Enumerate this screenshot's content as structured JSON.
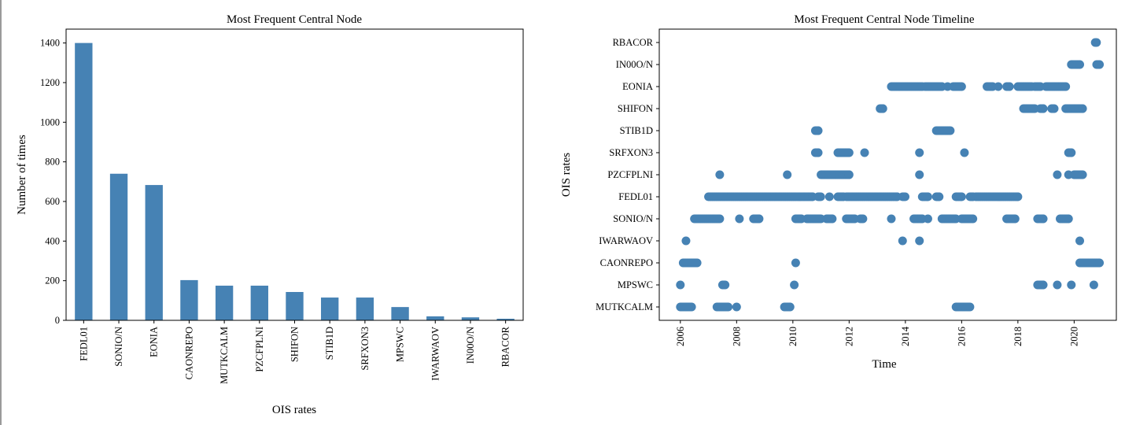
{
  "colors": {
    "bar": "#4682b4",
    "point": "#4682b4"
  },
  "chart_data": [
    {
      "type": "bar",
      "title": "Most Frequent Central Node",
      "xlabel": "OIS rates",
      "ylabel": "Number of times",
      "categories": [
        "FEDL01",
        "SONIO/N",
        "EONIA",
        "CAONREPO",
        "MUTKCALM",
        "PZCFPLNI",
        "SHIFON",
        "STIB1D",
        "SRFXON3",
        "MPSWC",
        "IWARWAOV",
        "IN00O/N",
        "RBACOR"
      ],
      "values": [
        1400,
        740,
        683,
        203,
        175,
        175,
        143,
        115,
        115,
        67,
        20,
        15,
        8
      ],
      "ylim": [
        0,
        1470
      ],
      "yticks": [
        0,
        200,
        400,
        600,
        800,
        1000,
        1200,
        1400
      ]
    },
    {
      "type": "scatter",
      "title": "Most Frequent Central Node Timeline",
      "xlabel": "Time",
      "ylabel": "OIS rates",
      "categories": [
        "MUTKCALM",
        "MPSWC",
        "CAONREPO",
        "IWARWAOV",
        "SONIO/N",
        "FEDL01",
        "PZCFPLNI",
        "SRFXON3",
        "STIB1D",
        "SHIFON",
        "EONIA",
        "IN00O/N",
        "RBACOR"
      ],
      "xlim": [
        2005.25,
        2021.5
      ],
      "xticks": [
        "2006",
        "2008",
        "2010",
        "2012",
        "2014",
        "2016",
        "2018",
        "2020"
      ],
      "runs": {
        "MUTKCALM": [
          [
            2006.0,
            2006.4
          ],
          [
            2007.3,
            2007.7
          ],
          [
            2008.0,
            2008.0
          ],
          [
            2009.7,
            2009.9
          ],
          [
            2015.8,
            2016.3
          ]
        ],
        "MPSWC": [
          [
            2006.0,
            2006.0
          ],
          [
            2007.5,
            2007.6
          ],
          [
            2010.05,
            2010.05
          ],
          [
            2018.7,
            2018.9
          ],
          [
            2019.4,
            2019.4
          ],
          [
            2019.9,
            2019.9
          ],
          [
            2020.7,
            2020.7
          ]
        ],
        "CAONREPO": [
          [
            2006.1,
            2006.6
          ],
          [
            2010.1,
            2010.1
          ],
          [
            2020.2,
            2020.9
          ]
        ],
        "IWARWAOV": [
          [
            2006.2,
            2006.2
          ],
          [
            2013.9,
            2013.9
          ],
          [
            2014.5,
            2014.5
          ],
          [
            2020.2,
            2020.2
          ]
        ],
        "SONIO/N": [
          [
            2006.5,
            2007.4
          ],
          [
            2008.1,
            2008.1
          ],
          [
            2008.6,
            2008.8
          ],
          [
            2010.1,
            2010.3
          ],
          [
            2010.5,
            2011.0
          ],
          [
            2011.2,
            2011.4
          ],
          [
            2011.9,
            2012.2
          ],
          [
            2012.4,
            2012.5
          ],
          [
            2013.5,
            2013.5
          ],
          [
            2014.3,
            2014.6
          ],
          [
            2014.8,
            2014.8
          ],
          [
            2015.3,
            2015.8
          ],
          [
            2016.0,
            2016.4
          ],
          [
            2017.6,
            2017.9
          ],
          [
            2018.7,
            2018.9
          ],
          [
            2019.5,
            2019.8
          ]
        ],
        "FEDL01": [
          [
            2007.0,
            2010.7
          ],
          [
            2010.9,
            2011.0
          ],
          [
            2011.3,
            2011.3
          ],
          [
            2011.6,
            2011.8
          ],
          [
            2011.9,
            2013.7
          ],
          [
            2013.9,
            2014.0
          ],
          [
            2014.6,
            2014.8
          ],
          [
            2015.1,
            2015.2
          ],
          [
            2015.8,
            2016.0
          ],
          [
            2016.3,
            2016.4
          ],
          [
            2016.5,
            2018.0
          ]
        ],
        "PZCFPLNI": [
          [
            2007.4,
            2007.4
          ],
          [
            2009.8,
            2009.8
          ],
          [
            2011.0,
            2012.0
          ],
          [
            2014.5,
            2014.5
          ],
          [
            2019.4,
            2019.4
          ],
          [
            2019.8,
            2019.8
          ],
          [
            2020.0,
            2020.3
          ]
        ],
        "SRFXON3": [
          [
            2010.8,
            2010.9
          ],
          [
            2011.6,
            2012.0
          ],
          [
            2012.55,
            2012.55
          ],
          [
            2014.5,
            2014.5
          ],
          [
            2016.1,
            2016.1
          ],
          [
            2019.8,
            2019.9
          ]
        ],
        "STIB1D": [
          [
            2010.8,
            2010.9
          ],
          [
            2015.1,
            2015.6
          ]
        ],
        "SHIFON": [
          [
            2013.1,
            2013.2
          ],
          [
            2018.2,
            2018.6
          ],
          [
            2018.8,
            2018.9
          ],
          [
            2019.2,
            2019.3
          ],
          [
            2019.7,
            2020.3
          ]
        ],
        "EONIA": [
          [
            2013.5,
            2014.6
          ],
          [
            2014.7,
            2015.3
          ],
          [
            2015.5,
            2015.5
          ],
          [
            2015.7,
            2016.0
          ],
          [
            2016.9,
            2017.1
          ],
          [
            2017.3,
            2017.3
          ],
          [
            2017.6,
            2017.7
          ],
          [
            2018.0,
            2018.5
          ],
          [
            2018.6,
            2018.8
          ],
          [
            2019.0,
            2019.7
          ]
        ],
        "IN00O/N": [
          [
            2019.9,
            2020.2
          ],
          [
            2020.8,
            2020.9
          ]
        ],
        "RBACOR": [
          [
            2020.75,
            2020.8
          ]
        ]
      }
    }
  ]
}
